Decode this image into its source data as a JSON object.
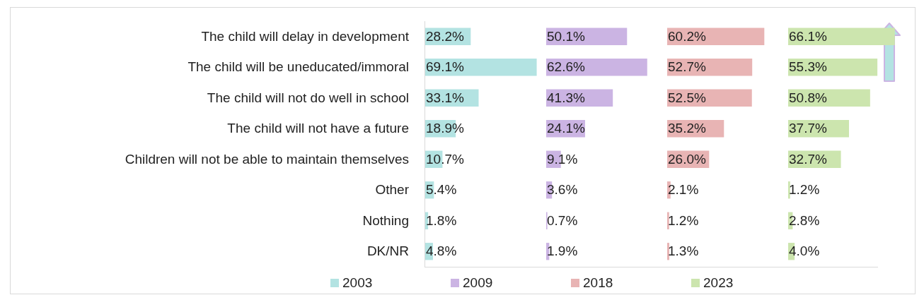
{
  "chart_data": [
    {
      "type": "bar",
      "orientation": "horizontal",
      "legend": "bottom",
      "tick_labels": "y",
      "categories": [
        "The child will delay in development",
        "The child will be uneducated/immoral",
        "The child will not do well in school",
        "The child will not have a future",
        "Children will not be able to maintain themselves",
        "Other",
        "Nothing",
        "DK/NR"
      ],
      "series": [
        {
          "name": "2003",
          "color": "#b3e3e2",
          "values": [
            28.2,
            69.1,
            33.1,
            18.9,
            10.7,
            5.4,
            1.8,
            4.8
          ],
          "value_labels": [
            "28.2%",
            "69.1%",
            "33.1%",
            "18.9%",
            "10.7%",
            "5.4%",
            "1.8%",
            "4.8%"
          ]
        }
      ]
    },
    {
      "type": "bar",
      "orientation": "horizontal",
      "legend": "bottom",
      "tick_labels": false,
      "categories": [
        null,
        null,
        null,
        null,
        null,
        null,
        null,
        null
      ],
      "series": [
        {
          "name": "2009",
          "color": "#cbb4e3",
          "values": [
            50.1,
            62.6,
            41.3,
            24.1,
            9.1,
            3.6,
            0.7,
            1.9
          ],
          "value_labels": [
            "50.1%",
            "62.6%",
            "41.3%",
            "24.1%",
            "9.1%",
            "3.6%",
            "0.7%",
            "1.9%"
          ]
        }
      ]
    },
    {
      "type": "bar",
      "orientation": "horizontal",
      "legend": "bottom",
      "tick_labels": false,
      "categories": [
        null,
        null,
        null,
        null,
        null,
        null,
        null,
        null
      ],
      "series": [
        {
          "name": "2018",
          "color": "#e8b4b4",
          "values": [
            60.2,
            52.7,
            52.5,
            35.2,
            26.0,
            2.1,
            1.2,
            1.3
          ],
          "value_labels": [
            "60.2%",
            "52.7%",
            "52.5%",
            "35.2%",
            "26.0%",
            "2.1%",
            "1.2%",
            "1.3%"
          ]
        }
      ]
    },
    {
      "type": "bar",
      "orientation": "horizontal",
      "legend": "bottom",
      "tick_labels": false,
      "categories": [
        null,
        null,
        null,
        null,
        null,
        null,
        null,
        null
      ],
      "series": [
        {
          "name": "2023",
          "color": "#cce5ae",
          "values": [
            66.1,
            55.3,
            50.8,
            37.7,
            32.7,
            1.2,
            2.8,
            4.0
          ],
          "value_labels": [
            "66.1%",
            "55.3%",
            "50.8%",
            "37.7%",
            "32.7%",
            "1.2%",
            "2.8%",
            "4.0%"
          ]
        }
      ]
    }
  ]
}
